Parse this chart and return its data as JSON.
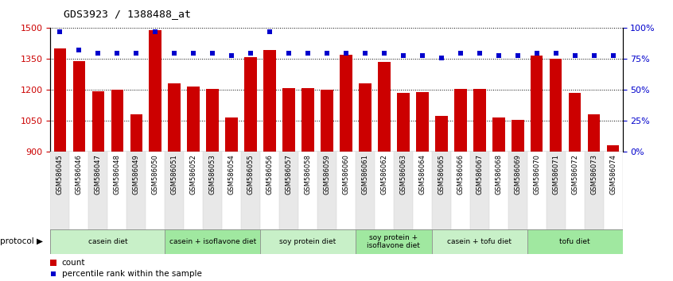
{
  "title": "GDS3923 / 1388488_at",
  "samples": [
    "GSM586045",
    "GSM586046",
    "GSM586047",
    "GSM586048",
    "GSM586049",
    "GSM586050",
    "GSM586051",
    "GSM586052",
    "GSM586053",
    "GSM586054",
    "GSM586055",
    "GSM586056",
    "GSM586057",
    "GSM586058",
    "GSM586059",
    "GSM586060",
    "GSM586061",
    "GSM586062",
    "GSM586063",
    "GSM586064",
    "GSM586065",
    "GSM586066",
    "GSM586067",
    "GSM586068",
    "GSM586069",
    "GSM586070",
    "GSM586071",
    "GSM586072",
    "GSM586073",
    "GSM586074"
  ],
  "counts": [
    1400,
    1340,
    1195,
    1200,
    1080,
    1490,
    1230,
    1215,
    1205,
    1065,
    1360,
    1395,
    1210,
    1210,
    1200,
    1370,
    1230,
    1335,
    1185,
    1190,
    1075,
    1205,
    1205,
    1065,
    1055,
    1365,
    1350,
    1185,
    1080,
    930
  ],
  "percentile_ranks": [
    97,
    82,
    80,
    80,
    80,
    97,
    80,
    80,
    80,
    78,
    80,
    97,
    80,
    80,
    80,
    80,
    80,
    80,
    78,
    78,
    76,
    80,
    80,
    78,
    78,
    80,
    80,
    78,
    78,
    78
  ],
  "protocols": [
    {
      "label": "casein diet",
      "start": 0,
      "end": 6,
      "color": "#c8f0c8"
    },
    {
      "label": "casein + isoflavone diet",
      "start": 6,
      "end": 11,
      "color": "#a0e8a0"
    },
    {
      "label": "soy protein diet",
      "start": 11,
      "end": 16,
      "color": "#c8f0c8"
    },
    {
      "label": "soy protein +\nisoflavone diet",
      "start": 16,
      "end": 20,
      "color": "#a0e8a0"
    },
    {
      "label": "casein + tofu diet",
      "start": 20,
      "end": 25,
      "color": "#c8f0c8"
    },
    {
      "label": "tofu diet",
      "start": 25,
      "end": 30,
      "color": "#a0e8a0"
    }
  ],
  "ylim_left": [
    900,
    1500
  ],
  "ylim_right": [
    0,
    100
  ],
  "yticks_left": [
    900,
    1050,
    1200,
    1350,
    1500
  ],
  "yticks_right": [
    0,
    25,
    50,
    75,
    100
  ],
  "bar_color": "#cc0000",
  "dot_color": "#0000cc",
  "bar_width": 0.65,
  "col_bg_even": "#e8e8e8",
  "col_bg_odd": "#ffffff"
}
